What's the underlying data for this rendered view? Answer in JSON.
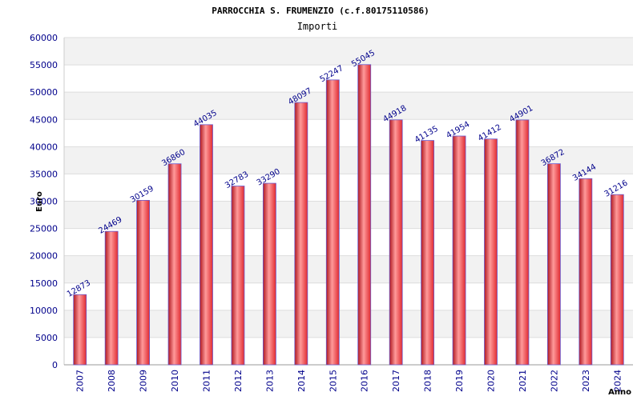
{
  "chart_data": {
    "type": "bar",
    "title": "PARROCCHIA S. FRUMENZIO (c.f.80175110586)",
    "subtitle": "Importi",
    "xlabel": "Anno",
    "ylabel": "Euro",
    "categories": [
      "2007",
      "2008",
      "2009",
      "2010",
      "2011",
      "2012",
      "2013",
      "2014",
      "2015",
      "2016",
      "2017",
      "2018",
      "2019",
      "2020",
      "2021",
      "2022",
      "2023",
      "2024"
    ],
    "series": [
      {
        "values": [
          12873,
          24469,
          30159,
          36860,
          44035,
          32783,
          33290,
          48097,
          52247,
          55045,
          44918,
          41135,
          41954,
          41412,
          44901,
          36872,
          34144,
          31216
        ]
      }
    ],
    "ylim": [
      0,
      60000
    ],
    "yticks": [
      0,
      5000,
      10000,
      15000,
      20000,
      25000,
      30000,
      35000,
      40000,
      45000,
      50000,
      55000,
      60000
    ],
    "grid": true,
    "data_labels": true,
    "colors": {
      "bar": "#e02a30",
      "bar_highlight": "#ff9a9a",
      "bar_edge": "#6a5acd",
      "band": "#f2f2f2",
      "grid": "#dddddd",
      "tick_text": "#00008b"
    }
  }
}
